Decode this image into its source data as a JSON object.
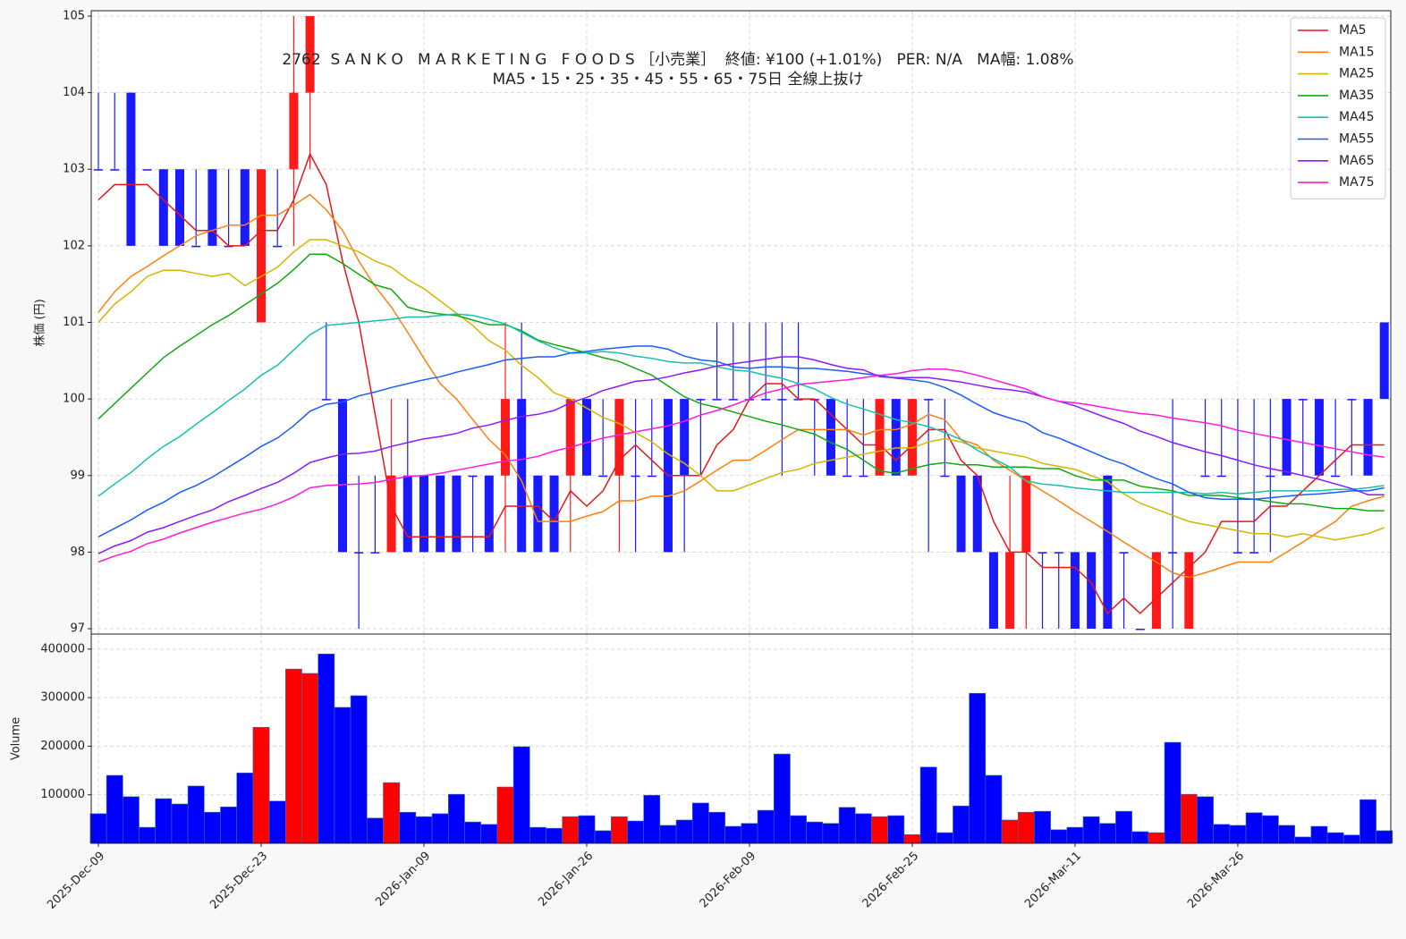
{
  "chart_data": {
    "type": "candlestick",
    "title": "2762  S A N K O   M A R K E T I N G   F O O D S ［小売業］  終値: ¥100 (+1.01%)   PER: N/A   MA幅: 1.08%",
    "subtitle": "MA5・15・25・35・45・55・65・75日 全線上抜け",
    "y_label": "株価 (円)",
    "categories": [
      "2025-Dec-09",
      null,
      null,
      null,
      null,
      null,
      null,
      null,
      null,
      null,
      "2025-Dec-23",
      null,
      null,
      null,
      null,
      null,
      null,
      null,
      null,
      null,
      "2026-Jan-09",
      null,
      null,
      null,
      null,
      null,
      null,
      null,
      null,
      null,
      "2026-Jan-26",
      null,
      null,
      null,
      null,
      null,
      null,
      null,
      null,
      null,
      "2026-Feb-09",
      null,
      null,
      null,
      null,
      null,
      null,
      null,
      null,
      null,
      "2026-Feb-25",
      null,
      null,
      null,
      null,
      null,
      null,
      null,
      null,
      null,
      "2026-Mar-11",
      null,
      null,
      null,
      null,
      null,
      null,
      null,
      null,
      null,
      "2026-Mar-26",
      null,
      null,
      null,
      null,
      null,
      null,
      null,
      null,
      null
    ],
    "open": [
      103,
      103,
      104,
      103,
      103,
      103,
      102,
      103,
      102,
      103,
      101,
      102,
      103,
      104,
      100,
      100,
      98,
      98,
      98,
      99,
      99,
      99,
      99,
      99,
      99,
      99,
      100,
      99,
      99,
      99,
      100,
      99,
      99,
      99,
      99,
      100,
      100,
      100,
      100,
      100,
      100,
      100,
      100,
      100,
      100,
      100,
      99,
      99,
      99,
      100,
      99,
      100,
      99,
      99,
      99,
      98,
      97,
      98,
      98,
      98,
      98,
      98,
      99,
      98,
      97,
      97,
      98,
      97,
      99,
      99,
      98,
      98,
      99,
      100,
      100,
      100,
      99,
      100,
      100,
      101
    ],
    "high": [
      104,
      104,
      104,
      103,
      103,
      103,
      103,
      103,
      103,
      103,
      103,
      103,
      105,
      105,
      101,
      100,
      99,
      99,
      100,
      100,
      99,
      99,
      99,
      99,
      99,
      101,
      101,
      99,
      99,
      100,
      100,
      100,
      100,
      100,
      100,
      100,
      100,
      100,
      101,
      101,
      101,
      101,
      101,
      101,
      100,
      100,
      100,
      100,
      100,
      100,
      100,
      100,
      100,
      99,
      99,
      98,
      99,
      99,
      98,
      98,
      98,
      98,
      99,
      98,
      97,
      98,
      100,
      98,
      100,
      100,
      100,
      100,
      100,
      100,
      100,
      100,
      100,
      100,
      100,
      101
    ],
    "low": [
      103,
      103,
      102,
      103,
      102,
      102,
      102,
      102,
      102,
      102,
      101,
      102,
      102,
      103,
      100,
      98,
      97,
      98,
      98,
      98,
      98,
      98,
      98,
      98,
      98,
      98,
      98,
      98,
      98,
      98,
      99,
      99,
      98,
      98,
      99,
      98,
      98,
      99,
      100,
      100,
      100,
      100,
      99,
      100,
      99,
      99,
      99,
      99,
      99,
      99,
      99,
      98,
      99,
      98,
      98,
      97,
      97,
      97,
      97,
      97,
      97,
      97,
      97,
      97,
      97,
      97,
      97,
      97,
      99,
      99,
      98,
      98,
      98,
      99,
      99,
      99,
      99,
      99,
      99,
      100
    ],
    "close": [
      103,
      103,
      102,
      103,
      102,
      102,
      102,
      102,
      102,
      102,
      103,
      102,
      104,
      105,
      100,
      98,
      98,
      98,
      99,
      98,
      98,
      98,
      98,
      99,
      98,
      100,
      98,
      98,
      98,
      100,
      99,
      99,
      100,
      99,
      99,
      98,
      99,
      100,
      100,
      100,
      100,
      100,
      100,
      100,
      100,
      99,
      99,
      99,
      100,
      99,
      100,
      100,
      99,
      98,
      98,
      97,
      98,
      99,
      98,
      98,
      97,
      97,
      97,
      98,
      97,
      98,
      98,
      98,
      99,
      99,
      98,
      98,
      99,
      99,
      100,
      99,
      99,
      100,
      99,
      100
    ],
    "up_color": "#ff1a1a",
    "down_color": "#1a1aff",
    "ylim": [
      96.93,
      105.07
    ],
    "yticks": [
      97,
      98,
      99,
      100,
      101,
      102,
      103,
      104,
      105
    ],
    "grid": true,
    "legend": "upper right",
    "series": [
      {
        "name": "MA5",
        "color": "#e8161b",
        "values": [
          102.6,
          102.8,
          102.8,
          102.8,
          102.6,
          102.4,
          102.2,
          102.2,
          102.0,
          102.0,
          102.2,
          102.2,
          102.6,
          103.2,
          102.8,
          101.8,
          101.0,
          99.8,
          98.6,
          98.2,
          98.2,
          98.2,
          98.2,
          98.2,
          98.2,
          98.6,
          98.6,
          98.6,
          98.4,
          98.8,
          98.6,
          98.8,
          99.2,
          99.4,
          99.2,
          99.0,
          99.0,
          99.0,
          99.4,
          99.6,
          100.0,
          100.2,
          100.2,
          100.0,
          100.0,
          99.8,
          99.6,
          99.4,
          99.4,
          99.2,
          99.4,
          99.6,
          99.6,
          99.2,
          99.0,
          98.4,
          98.0,
          98.0,
          97.8,
          97.8,
          97.8,
          97.6,
          97.2,
          97.4,
          97.2,
          97.4,
          97.6,
          97.8,
          98.0,
          98.4,
          98.4,
          98.4,
          98.6,
          98.6,
          98.8,
          99.0,
          99.2,
          99.4,
          99.4,
          99.4
        ]
      },
      {
        "name": "MA15",
        "color": "#ff7f0e",
        "values": [
          101.13,
          101.4,
          101.6,
          101.73,
          101.87,
          102.0,
          102.13,
          102.2,
          102.27,
          102.27,
          102.4,
          102.4,
          102.53,
          102.67,
          102.47,
          102.2,
          101.8,
          101.47,
          101.2,
          100.87,
          100.53,
          100.2,
          100.0,
          99.73,
          99.47,
          99.27,
          98.93,
          98.4,
          98.4,
          98.4,
          98.47,
          98.53,
          98.67,
          98.67,
          98.73,
          98.73,
          98.8,
          98.93,
          99.07,
          99.2,
          99.2,
          99.33,
          99.47,
          99.6,
          99.6,
          99.6,
          99.6,
          99.53,
          99.6,
          99.6,
          99.67,
          99.8,
          99.73,
          99.47,
          99.4,
          99.2,
          99.07,
          98.93,
          98.8,
          98.67,
          98.53,
          98.4,
          98.27,
          98.13,
          98.0,
          97.87,
          97.73,
          97.67,
          97.73,
          97.8,
          97.87,
          97.87,
          97.87,
          98.0,
          98.13,
          98.27,
          98.4,
          98.6,
          98.67,
          98.73
        ]
      },
      {
        "name": "MA25",
        "color": "#d4b500",
        "values": [
          101.0,
          101.24,
          101.4,
          101.6,
          101.68,
          101.68,
          101.64,
          101.6,
          101.64,
          101.48,
          101.6,
          101.72,
          101.92,
          102.08,
          102.08,
          102.0,
          101.92,
          101.8,
          101.72,
          101.56,
          101.44,
          101.28,
          101.12,
          100.96,
          100.76,
          100.64,
          100.44,
          100.28,
          100.08,
          100.0,
          99.88,
          99.76,
          99.68,
          99.56,
          99.44,
          99.28,
          99.16,
          99.0,
          98.8,
          98.8,
          98.88,
          98.96,
          99.04,
          99.08,
          99.16,
          99.2,
          99.24,
          99.28,
          99.32,
          99.36,
          99.36,
          99.44,
          99.48,
          99.44,
          99.36,
          99.32,
          99.28,
          99.24,
          99.16,
          99.12,
          99.08,
          99.0,
          98.92,
          98.76,
          98.64,
          98.56,
          98.48,
          98.4,
          98.36,
          98.32,
          98.28,
          98.24,
          98.24,
          98.2,
          98.24,
          98.2,
          98.16,
          98.2,
          98.24,
          98.32
        ]
      },
      {
        "name": "MA35",
        "color": "#13a813",
        "values": [
          99.74,
          99.94,
          100.14,
          100.34,
          100.54,
          100.69,
          100.83,
          100.97,
          101.09,
          101.23,
          101.37,
          101.51,
          101.69,
          101.89,
          101.89,
          101.77,
          101.63,
          101.49,
          101.43,
          101.2,
          101.14,
          101.11,
          101.09,
          101.03,
          100.97,
          100.97,
          100.89,
          100.77,
          100.71,
          100.66,
          100.6,
          100.54,
          100.49,
          100.4,
          100.31,
          100.17,
          100.03,
          99.94,
          99.89,
          99.83,
          99.77,
          99.71,
          99.66,
          99.6,
          99.54,
          99.43,
          99.34,
          99.2,
          99.06,
          99.03,
          99.09,
          99.14,
          99.17,
          99.14,
          99.14,
          99.11,
          99.11,
          99.11,
          99.09,
          99.09,
          99.0,
          98.94,
          98.94,
          98.94,
          98.86,
          98.83,
          98.8,
          98.74,
          98.74,
          98.74,
          98.71,
          98.69,
          98.66,
          98.63,
          98.63,
          98.6,
          98.57,
          98.57,
          98.54,
          98.54
        ]
      },
      {
        "name": "MA45",
        "color": "#17bfb0",
        "values": [
          98.73,
          98.89,
          99.04,
          99.22,
          99.38,
          99.51,
          99.67,
          99.82,
          99.98,
          100.13,
          100.31,
          100.44,
          100.64,
          100.84,
          100.96,
          100.98,
          101.0,
          101.02,
          101.04,
          101.07,
          101.07,
          101.09,
          101.11,
          101.09,
          101.04,
          100.98,
          100.87,
          100.76,
          100.67,
          100.6,
          100.6,
          100.62,
          100.6,
          100.56,
          100.53,
          100.49,
          100.47,
          100.47,
          100.42,
          100.38,
          100.36,
          100.31,
          100.27,
          100.2,
          100.13,
          100.02,
          99.93,
          99.87,
          99.8,
          99.73,
          99.69,
          99.64,
          99.56,
          99.47,
          99.33,
          99.22,
          99.11,
          98.93,
          98.89,
          98.87,
          98.84,
          98.82,
          98.8,
          98.78,
          98.78,
          98.78,
          98.78,
          98.78,
          98.76,
          98.78,
          98.76,
          98.78,
          98.8,
          98.8,
          98.8,
          98.8,
          98.82,
          98.82,
          98.84,
          98.87
        ]
      },
      {
        "name": "MA55",
        "color": "#1a5cff",
        "values": [
          98.2,
          98.31,
          98.42,
          98.55,
          98.65,
          98.78,
          98.87,
          98.98,
          99.11,
          99.24,
          99.38,
          99.49,
          99.65,
          99.84,
          99.93,
          99.96,
          100.04,
          100.09,
          100.15,
          100.2,
          100.25,
          100.29,
          100.35,
          100.4,
          100.45,
          100.51,
          100.53,
          100.55,
          100.55,
          100.6,
          100.62,
          100.65,
          100.67,
          100.69,
          100.69,
          100.65,
          100.56,
          100.51,
          100.49,
          100.42,
          100.4,
          100.42,
          100.42,
          100.4,
          100.4,
          100.38,
          100.36,
          100.33,
          100.31,
          100.27,
          100.25,
          100.22,
          100.15,
          100.05,
          99.93,
          99.82,
          99.75,
          99.69,
          99.56,
          99.49,
          99.4,
          99.31,
          99.22,
          99.15,
          99.05,
          98.96,
          98.89,
          98.78,
          98.71,
          98.69,
          98.69,
          98.69,
          98.71,
          98.73,
          98.75,
          98.76,
          98.78,
          98.8,
          98.8,
          98.84
        ]
      },
      {
        "name": "MA65",
        "color": "#8a1aff",
        "values": [
          97.98,
          98.08,
          98.15,
          98.26,
          98.32,
          98.4,
          98.48,
          98.55,
          98.66,
          98.74,
          98.83,
          98.91,
          99.03,
          99.17,
          99.23,
          99.28,
          99.29,
          99.32,
          99.38,
          99.43,
          99.48,
          99.51,
          99.55,
          99.62,
          99.66,
          99.72,
          99.77,
          99.8,
          99.85,
          99.95,
          100.02,
          100.11,
          100.17,
          100.23,
          100.25,
          100.29,
          100.34,
          100.38,
          100.43,
          100.46,
          100.49,
          100.52,
          100.55,
          100.55,
          100.51,
          100.45,
          100.4,
          100.38,
          100.29,
          100.28,
          100.28,
          100.28,
          100.25,
          100.22,
          100.18,
          100.14,
          100.12,
          100.09,
          100.03,
          99.97,
          99.91,
          99.83,
          99.75,
          99.68,
          99.58,
          99.51,
          99.43,
          99.37,
          99.31,
          99.26,
          99.2,
          99.14,
          99.09,
          99.05,
          99.0,
          98.95,
          98.89,
          98.83,
          98.75,
          98.75
        ]
      },
      {
        "name": "MA75",
        "color": "#ff1adb",
        "values": [
          97.87,
          97.95,
          98.01,
          98.11,
          98.17,
          98.25,
          98.32,
          98.39,
          98.45,
          98.51,
          98.56,
          98.63,
          98.72,
          98.84,
          98.87,
          98.88,
          98.89,
          98.91,
          98.95,
          98.99,
          99.0,
          99.03,
          99.07,
          99.11,
          99.15,
          99.19,
          99.21,
          99.25,
          99.32,
          99.37,
          99.43,
          99.49,
          99.53,
          99.57,
          99.61,
          99.65,
          99.71,
          99.79,
          99.85,
          99.92,
          100.0,
          100.08,
          100.13,
          100.19,
          100.21,
          100.23,
          100.25,
          100.28,
          100.31,
          100.33,
          100.37,
          100.39,
          100.39,
          100.36,
          100.31,
          100.25,
          100.19,
          100.13,
          100.03,
          99.97,
          99.95,
          99.92,
          99.88,
          99.84,
          99.81,
          99.79,
          99.75,
          99.72,
          99.69,
          99.65,
          99.59,
          99.55,
          99.51,
          99.47,
          99.43,
          99.39,
          99.35,
          99.31,
          99.27,
          99.24
        ]
      }
    ],
    "volume": {
      "y_label": "Volume",
      "values": [
        61000,
        140000,
        96000,
        33000,
        92000,
        81000,
        118000,
        64000,
        75000,
        145000,
        239000,
        87000,
        359000,
        350000,
        390000,
        280000,
        304000,
        52000,
        125000,
        64000,
        55000,
        61000,
        101000,
        44000,
        39000,
        116000,
        199000,
        33000,
        31000,
        55000,
        57000,
        26000,
        55000,
        46000,
        99000,
        37000,
        48000,
        83000,
        64000,
        35000,
        41000,
        68000,
        184000,
        57000,
        44000,
        41000,
        74000,
        61000,
        55000,
        57000,
        18000,
        157000,
        22000,
        77000,
        309000,
        140000,
        48000,
        64000,
        66000,
        28000,
        33000,
        55000,
        41000,
        66000,
        24000,
        22000,
        208000,
        101000,
        96000,
        39000,
        37000,
        63000,
        57000,
        37000,
        13000,
        35000,
        22000,
        17000,
        90000,
        26000
      ],
      "ylim": [
        0,
        431000
      ],
      "yticks": [
        100000,
        200000,
        300000,
        400000
      ]
    }
  }
}
